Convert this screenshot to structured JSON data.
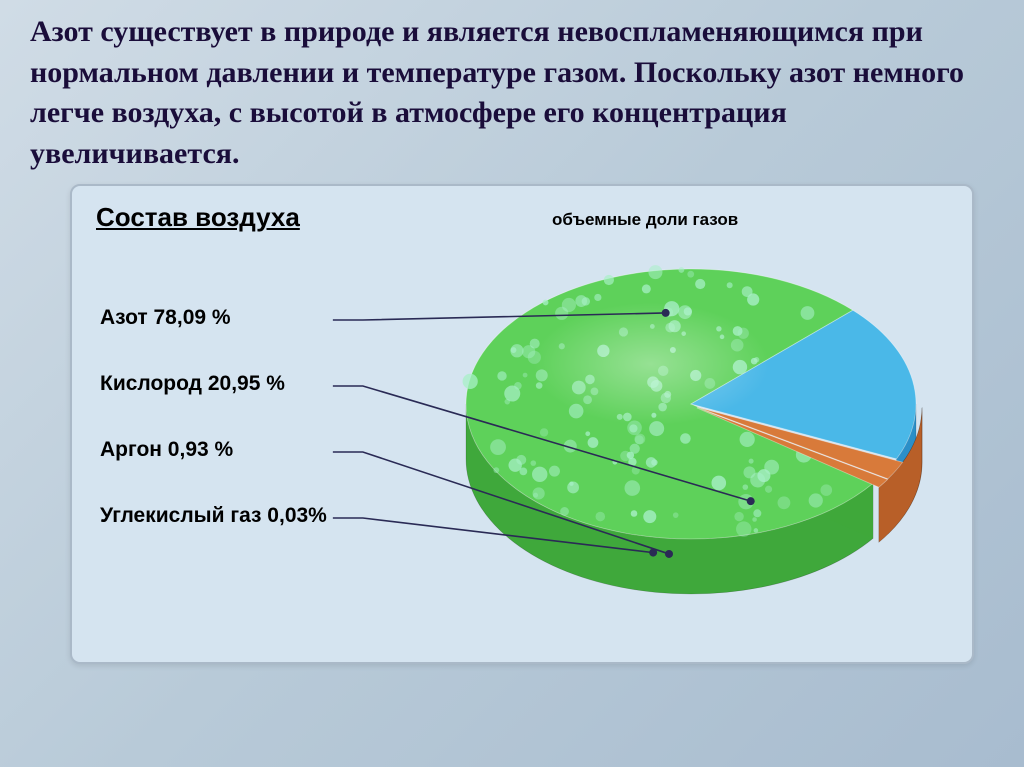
{
  "main_text": "Азот существует в природе и является невоспламеняющимся при нормальном давлении и температуре газом. Поскольку азот немного легче воздуха, с высотой в атмосфере его концентрация увеличивается.",
  "chart": {
    "type": "pie-3d",
    "title": "Состав воздуха",
    "subtitle": "объемные доли газов",
    "background_color": "#d5e4f0",
    "panel_border_color": "#aab9c8",
    "leader_color": "#2a2a55",
    "slices": [
      {
        "name": "Азот",
        "pct": 78.09,
        "label": "Азот 78,09 %",
        "top_color": "#5ed15a",
        "side_color": "#3fa83b",
        "speckle": true
      },
      {
        "name": "Кислород",
        "pct": 20.95,
        "label": "Кислород 20,95 %",
        "top_color": "#4ab8e8",
        "side_color": "#2b8fc8"
      },
      {
        "name": "Аргон",
        "pct": 0.93,
        "label": "Аргон 0,93 %",
        "top_color": "#d87a3a",
        "side_color": "#b85f28"
      },
      {
        "name": "Углекислый газ",
        "pct": 0.03,
        "label": "Углекислый газ 0,03%",
        "top_color": "#d87a3a",
        "side_color": "#b85f28"
      }
    ],
    "title_fontsize": 26,
    "label_fontsize": 21,
    "subtitle_fontsize": 17,
    "label_color": "#000000",
    "text_color": "#1a0d3a"
  }
}
